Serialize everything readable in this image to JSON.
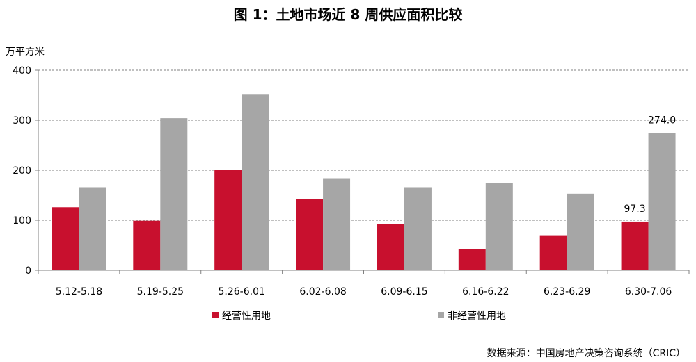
{
  "chart_data": {
    "type": "bar",
    "title": "图 1：土地市场近 8 周供应面积比较",
    "ylabel": "万平方米",
    "ylim": [
      0,
      400
    ],
    "yticks": [
      0,
      100,
      200,
      300,
      400
    ],
    "grid": true,
    "legend_position": "bottom",
    "categories": [
      "5.12-5.18",
      "5.19-5.25",
      "5.26-6.01",
      "6.02-6.08",
      "6.09-6.15",
      "6.16-6.22",
      "6.23-6.29",
      "6.30-7.06"
    ],
    "series": [
      {
        "name": "经营性用地",
        "color": "#C8102E",
        "values": [
          126,
          99,
          201,
          142,
          93,
          42,
          70,
          97.3
        ]
      },
      {
        "name": "非经营性用地",
        "color": "#A6A6A6",
        "values": [
          166,
          304,
          351,
          184,
          166,
          175,
          153,
          274.0
        ]
      }
    ],
    "data_labels": [
      {
        "series": 0,
        "index": 7,
        "text": "97.3"
      },
      {
        "series": 1,
        "index": 7,
        "text": "274.0"
      }
    ],
    "source": "数据来源：中国房地产决策咨询系统（CRIC）"
  }
}
